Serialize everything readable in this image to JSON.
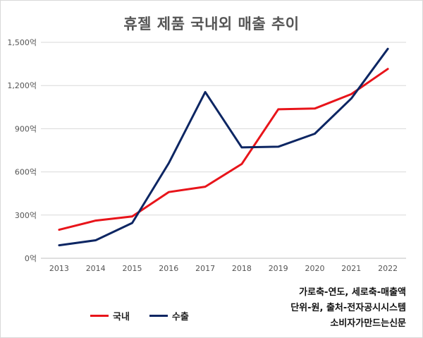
{
  "chart_data": {
    "type": "line",
    "title": "휴젤 제품 국내외 매출 추이",
    "categories": [
      "2013",
      "2014",
      "2015",
      "2016",
      "2017",
      "2018",
      "2019",
      "2020",
      "2021",
      "2022"
    ],
    "series": [
      {
        "name": "국내",
        "color": "#e8141a",
        "values": [
          198,
          262,
          290,
          460,
          497,
          655,
          1035,
          1040,
          1140,
          1315
        ]
      },
      {
        "name": "수출",
        "color": "#0d2663",
        "values": [
          90,
          125,
          245,
          660,
          1155,
          770,
          775,
          865,
          1110,
          1455
        ]
      }
    ],
    "y_ticks": [
      "0억",
      "300억",
      "600억",
      "900억",
      "1,200억",
      "1,500억"
    ],
    "ylim": [
      0,
      1500
    ],
    "grid": true,
    "legend_position": "bottom-left"
  },
  "notes": {
    "axis_note": "가로축-연도, 세로축-매출액",
    "source_note": "단위-원, 출처-전자공시시스템",
    "credit": "소비자가만드는신문"
  }
}
